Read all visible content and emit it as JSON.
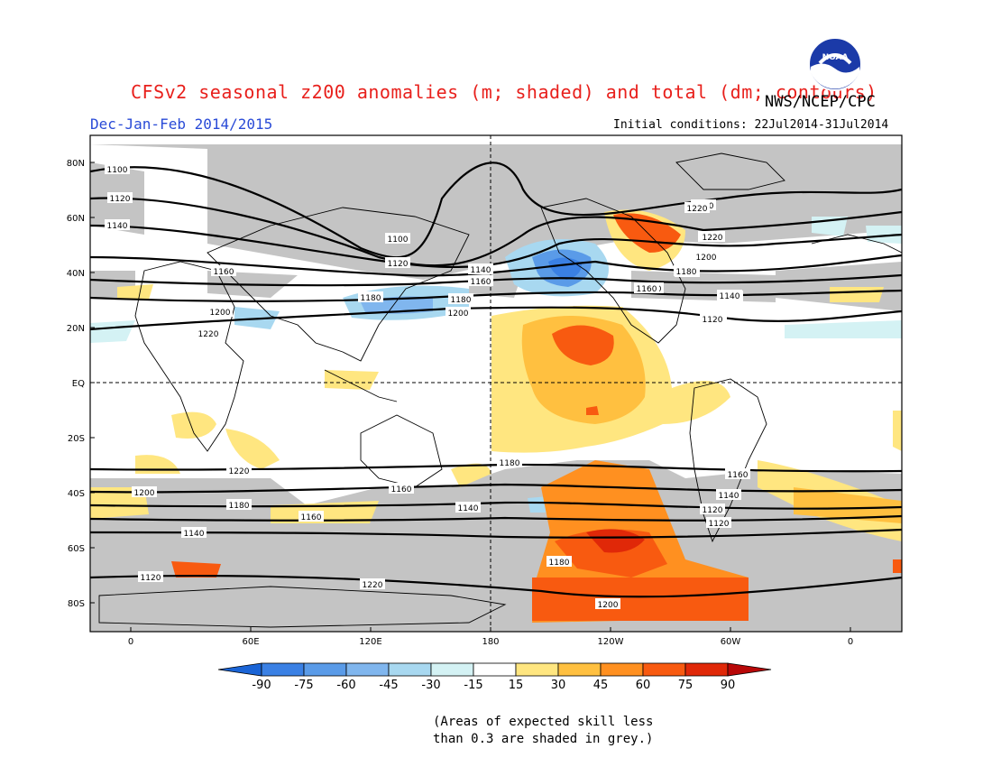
{
  "header": {
    "title": "CFSv2 seasonal z200 anomalies (m; shaded) and total (dm; contours)",
    "period": "Dec-Jan-Feb 2014/2015",
    "agency": "NWS/NCEP/CPC",
    "initial_conditions": "Initial conditions: 22Jul2014-31Jul2014",
    "logo_text": "NOAA"
  },
  "map": {
    "lat_labels": [
      "80N",
      "60N",
      "40N",
      "20N",
      "EQ",
      "20S",
      "40S",
      "60S",
      "80S"
    ],
    "lon_labels": [
      "0",
      "60E",
      "120E",
      "180",
      "120W",
      "60W",
      "0"
    ],
    "contour_labels": [
      "1100",
      "1120",
      "1140",
      "1160",
      "1180",
      "1200",
      "1220",
      "1220",
      "1200",
      "1180",
      "1160",
      "1140",
      "1120",
      "1100",
      "1120",
      "1140",
      "1160",
      "1180",
      "1200",
      "1220",
      "1120",
      "1140",
      "1160",
      "1180",
      "1200",
      "1220",
      "1220",
      "1200",
      "1180",
      "1160",
      "1140",
      "1120",
      "1120",
      "1140",
      "1160",
      "1180",
      "1200",
      "1220",
      "1220",
      "1200",
      "1180",
      "1160",
      "1140",
      "1120"
    ]
  },
  "colorbar": {
    "ticks": [
      "-90",
      "-75",
      "-60",
      "-45",
      "-30",
      "-15",
      "15",
      "30",
      "45",
      "60",
      "75",
      "90"
    ],
    "colors": [
      "#1a64d6",
      "#3a80e4",
      "#5a9be8",
      "#80b6ee",
      "#a8d8f0",
      "#d4f2f4",
      "#ffffff",
      "#ffe680",
      "#ffc040",
      "#ff9020",
      "#f85a10",
      "#e02808",
      "#b80808"
    ]
  },
  "note": {
    "line1": "(Areas of expected skill less",
    "line2": "than 0.3 are shaded in grey.)"
  },
  "colors": {
    "title": "#e8201c",
    "period": "#2a4bd7",
    "grey_skill": "#c4c4c4"
  }
}
